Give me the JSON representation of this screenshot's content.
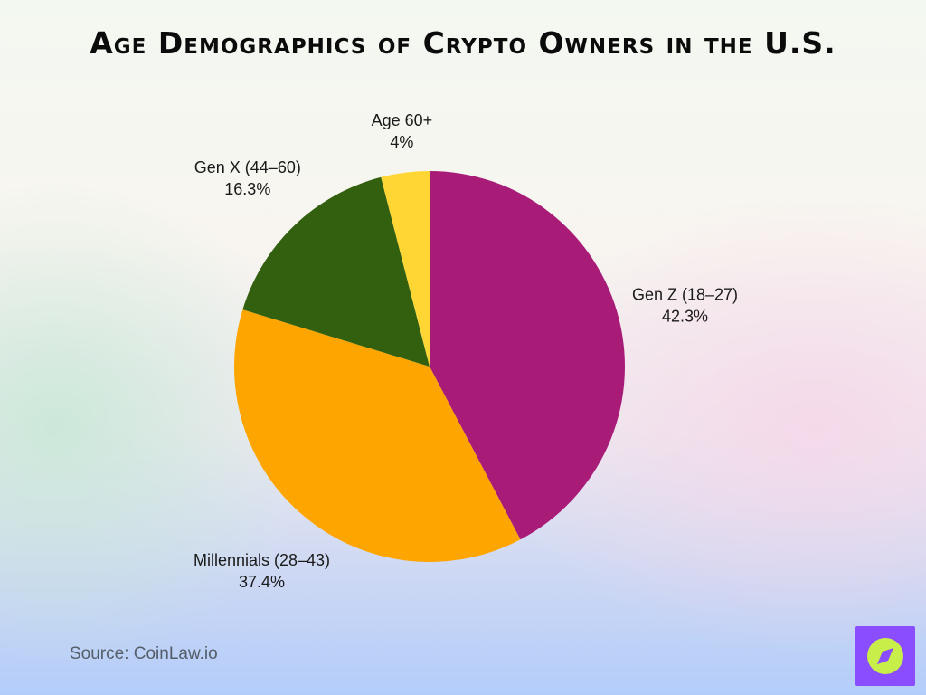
{
  "chart_data": {
    "type": "pie",
    "title": "Age Demographics of Crypto Owners in the U.S.",
    "slices": [
      {
        "label": "Gen Z (18–27)",
        "value": 42.3,
        "value_label": "42.3%",
        "color": "#a81c78"
      },
      {
        "label": "Millennials (28–43)",
        "value": 37.4,
        "value_label": "37.4%",
        "color": "#ffa500"
      },
      {
        "label": "Gen X (44–60)",
        "value": 16.3,
        "value_label": "16.3%",
        "color": "#33600f"
      },
      {
        "label": "Age 60+",
        "value": 4,
        "value_label": "4%",
        "color": "#ffd633"
      }
    ],
    "start": "top",
    "direction": "clockwise"
  },
  "footer": {
    "source": "Source: CoinLaw.io"
  },
  "logo": {
    "icon": "compass-icon",
    "background": "#8a4dff",
    "badge_color": "#c8ee4a"
  }
}
